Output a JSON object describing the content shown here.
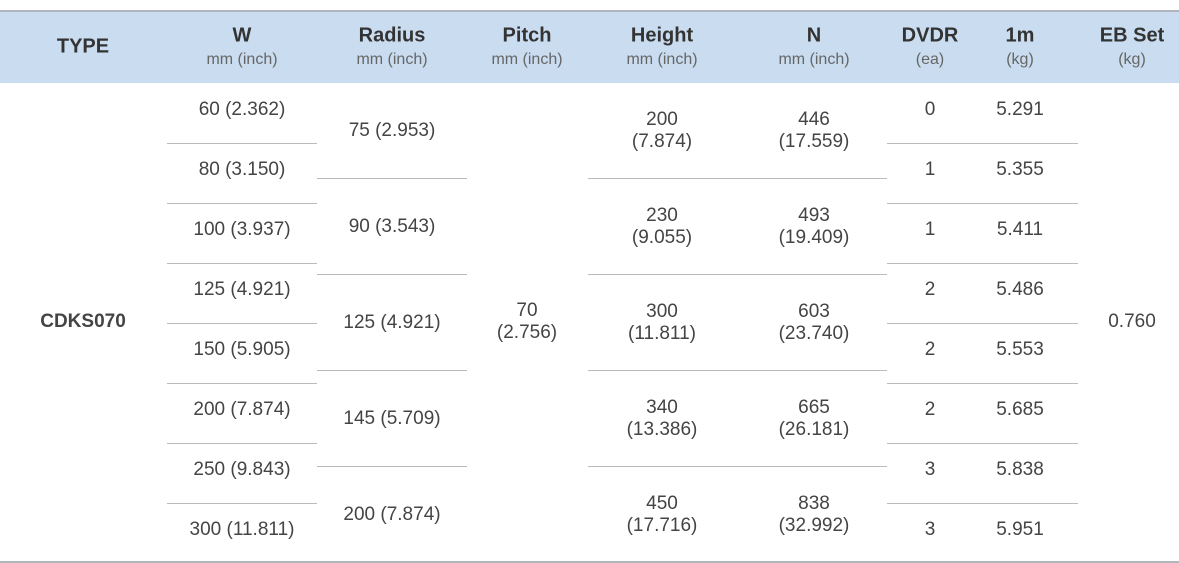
{
  "header": {
    "columns": [
      {
        "title": "TYPE"
      },
      {
        "title": "W",
        "unit": "mm (inch)"
      },
      {
        "title": "Radius",
        "unit": "mm (inch)"
      },
      {
        "title": "Pitch",
        "unit": "mm (inch)"
      },
      {
        "title": "Height",
        "unit": "mm (inch)"
      },
      {
        "title": "N",
        "unit": "mm (inch)"
      },
      {
        "title": "DVDR",
        "unit": "(ea)"
      },
      {
        "title": "1m",
        "unit": "(kg)"
      },
      {
        "title": "EB Set",
        "unit": "(kg)"
      }
    ]
  },
  "table": {
    "type": "CDKS070",
    "pitch": [
      "70",
      "(2.756)"
    ],
    "eb_set": "0.760",
    "w": [
      "60 (2.362)",
      "80 (3.150)",
      "100 (3.937)",
      "125 (4.921)",
      "150 (5.905)",
      "200 (7.874)",
      "250 (9.843)",
      "300 (11.811)"
    ],
    "dvdr": [
      "0",
      "1",
      "1",
      "2",
      "2",
      "2",
      "3",
      "3"
    ],
    "mass": [
      "5.291",
      "5.355",
      "5.411",
      "5.486",
      "5.553",
      "5.685",
      "5.838",
      "5.951"
    ],
    "radius": [
      "75 (2.953)",
      "90 (3.543)",
      "125 (4.921)",
      "145 (5.709)",
      "200 (7.874)"
    ],
    "height": [
      [
        "200",
        "(7.874)"
      ],
      [
        "230",
        "(9.055)"
      ],
      [
        "300",
        "(11.811)"
      ],
      [
        "340",
        "(13.386)"
      ],
      [
        "450",
        "(17.716)"
      ]
    ],
    "n": [
      [
        "446",
        "(17.559)"
      ],
      [
        "493",
        "(19.409)"
      ],
      [
        "603",
        "(23.740)"
      ],
      [
        "665",
        "(26.181)"
      ],
      [
        "838",
        "(32.992)"
      ]
    ]
  }
}
